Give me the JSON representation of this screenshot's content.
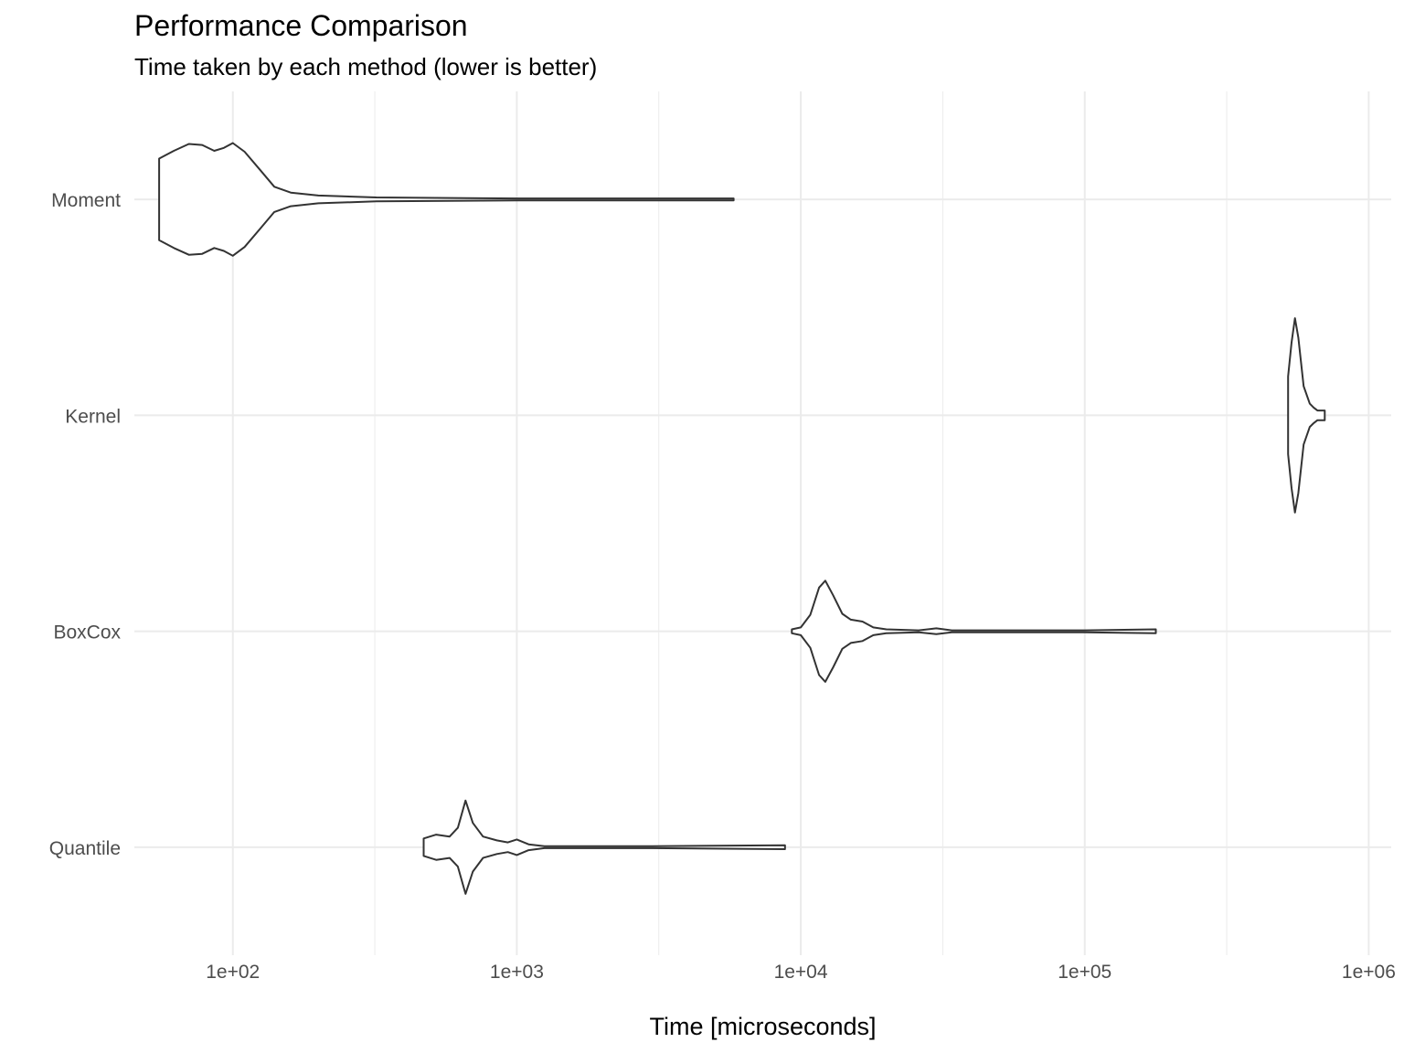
{
  "chart_data": {
    "type": "violin",
    "title": "Performance Comparison",
    "subtitle": "Time taken by each method (lower is better)",
    "xlabel": "Time [microseconds]",
    "ylabel": "",
    "x_scale": "log10",
    "xlim": [
      45,
      1200000
    ],
    "x_ticks": [
      100,
      1000,
      10000,
      100000,
      1000000
    ],
    "x_tick_labels": [
      "1e+02",
      "1e+03",
      "1e+04",
      "1e+05",
      "1e+06"
    ],
    "categories": [
      "Quantile",
      "BoxCox",
      "Kernel",
      "Moment"
    ],
    "grid": true,
    "series": [
      {
        "category": "Moment",
        "min": 55,
        "max": 5800,
        "density": [
          [
            55,
            0.42
          ],
          [
            62,
            0.5
          ],
          [
            70,
            0.57
          ],
          [
            78,
            0.56
          ],
          [
            86,
            0.5
          ],
          [
            93,
            0.53
          ],
          [
            100,
            0.58
          ],
          [
            110,
            0.49
          ],
          [
            125,
            0.3
          ],
          [
            140,
            0.13
          ],
          [
            160,
            0.07
          ],
          [
            200,
            0.04
          ],
          [
            320,
            0.02
          ],
          [
            1000,
            0.01
          ],
          [
            5800,
            0.01
          ]
        ]
      },
      {
        "category": "Kernel",
        "min": 520000,
        "max": 700000,
        "density": [
          [
            520000,
            0.4
          ],
          [
            535000,
            0.75
          ],
          [
            550000,
            1.0
          ],
          [
            565000,
            0.8
          ],
          [
            590000,
            0.3
          ],
          [
            620000,
            0.12
          ],
          [
            640000,
            0.08
          ],
          [
            660000,
            0.05
          ],
          [
            700000,
            0.05
          ]
        ]
      },
      {
        "category": "BoxCox",
        "min": 9300,
        "max": 178000,
        "density": [
          [
            9300,
            0.02
          ],
          [
            10000,
            0.04
          ],
          [
            10800,
            0.17
          ],
          [
            11600,
            0.45
          ],
          [
            12200,
            0.52
          ],
          [
            13000,
            0.37
          ],
          [
            14000,
            0.18
          ],
          [
            15000,
            0.12
          ],
          [
            16500,
            0.1
          ],
          [
            18000,
            0.04
          ],
          [
            20000,
            0.02
          ],
          [
            26000,
            0.01
          ],
          [
            30000,
            0.03
          ],
          [
            34000,
            0.01
          ],
          [
            100000,
            0.01
          ],
          [
            178000,
            0.02
          ]
        ]
      },
      {
        "category": "Quantile",
        "min": 470,
        "max": 8800,
        "density": [
          [
            470,
            0.09
          ],
          [
            520,
            0.13
          ],
          [
            580,
            0.11
          ],
          [
            620,
            0.2
          ],
          [
            660,
            0.48
          ],
          [
            700,
            0.25
          ],
          [
            760,
            0.11
          ],
          [
            850,
            0.07
          ],
          [
            930,
            0.05
          ],
          [
            1000,
            0.08
          ],
          [
            1100,
            0.03
          ],
          [
            1250,
            0.01
          ],
          [
            3000,
            0.01
          ],
          [
            8800,
            0.02
          ]
        ]
      }
    ]
  }
}
